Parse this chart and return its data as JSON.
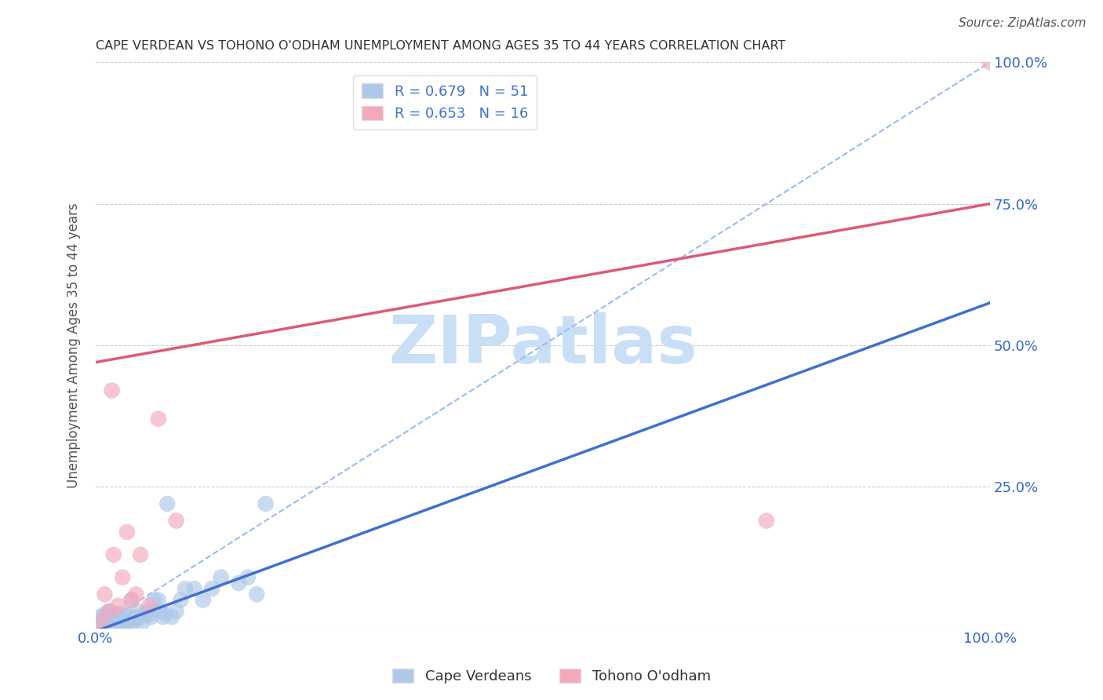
{
  "title": "CAPE VERDEAN VS TOHONO O'ODHAM UNEMPLOYMENT AMONG AGES 35 TO 44 YEARS CORRELATION CHART",
  "source": "Source: ZipAtlas.com",
  "ylabel": "Unemployment Among Ages 35 to 44 years",
  "xlim": [
    0,
    1.0
  ],
  "ylim": [
    0,
    1.0
  ],
  "blue_r": 0.679,
  "blue_n": 51,
  "pink_r": 0.653,
  "pink_n": 16,
  "blue_color": "#adc8e8",
  "pink_color": "#f4a8bc",
  "blue_line_color": "#4070d0",
  "pink_line_color": "#e05878",
  "legend_blue_label": "Cape Verdeans",
  "legend_pink_label": "Tohono O'odham",
  "blue_scatter_x": [
    0.005,
    0.008,
    0.01,
    0.01,
    0.012,
    0.013,
    0.015,
    0.015,
    0.018,
    0.02,
    0.02,
    0.022,
    0.024,
    0.025,
    0.025,
    0.028,
    0.03,
    0.03,
    0.032,
    0.035,
    0.036,
    0.038,
    0.04,
    0.04,
    0.043,
    0.045,
    0.047,
    0.05,
    0.052,
    0.055,
    0.058,
    0.06,
    0.062,
    0.065,
    0.07,
    0.072,
    0.075,
    0.078,
    0.08,
    0.085,
    0.09,
    0.095,
    0.1,
    0.11,
    0.12,
    0.13,
    0.14,
    0.16,
    0.17,
    0.18,
    0.19
  ],
  "blue_scatter_y": [
    0.02,
    0.015,
    0.005,
    0.025,
    0.01,
    0.015,
    0.01,
    0.03,
    0.01,
    0.005,
    0.02,
    0.015,
    0.01,
    0.005,
    0.025,
    0.01,
    0.005,
    0.015,
    0.025,
    0.01,
    0.02,
    0.015,
    0.01,
    0.05,
    0.02,
    0.015,
    0.03,
    0.02,
    0.01,
    0.025,
    0.03,
    0.025,
    0.02,
    0.05,
    0.05,
    0.03,
    0.02,
    0.025,
    0.22,
    0.02,
    0.03,
    0.05,
    0.07,
    0.07,
    0.05,
    0.07,
    0.09,
    0.08,
    0.09,
    0.06,
    0.22
  ],
  "pink_scatter_x": [
    0.005,
    0.01,
    0.015,
    0.018,
    0.02,
    0.025,
    0.03,
    0.035,
    0.04,
    0.045,
    0.05,
    0.06,
    0.07,
    0.09,
    0.75,
    1.0
  ],
  "pink_scatter_y": [
    0.01,
    0.06,
    0.03,
    0.42,
    0.13,
    0.04,
    0.09,
    0.17,
    0.05,
    0.06,
    0.13,
    0.04,
    0.37,
    0.19,
    0.19,
    1.0
  ],
  "blue_trend_slope": 0.58,
  "blue_trend_intercept": -0.005,
  "pink_trend_slope": 0.28,
  "pink_trend_intercept": 0.47,
  "ref_line_color": "#99bbee",
  "ref_line_style": "--",
  "watermark_text": "ZIPatlas",
  "watermark_color": "#c8dff5",
  "background_color": "#ffffff",
  "grid_color": "#cccccc",
  "title_color": "#333333",
  "axis_label_color": "#555555",
  "tick_color": "#3366cc"
}
